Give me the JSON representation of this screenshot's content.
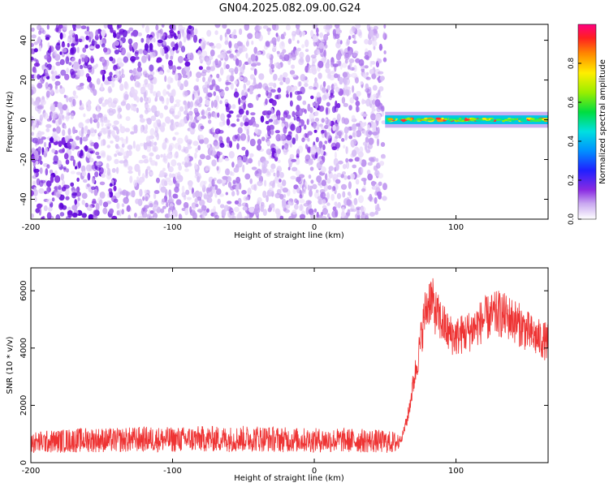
{
  "title": "GN04.2025.082.09.00.G24",
  "chart_data": [
    {
      "type": "heatmap",
      "xlabel": "Height of straight line (km)",
      "ylabel": "Frequency (Hz)",
      "xlim": [
        -200,
        165
      ],
      "ylim": [
        -50,
        48
      ],
      "x_ticks": [
        -200,
        -100,
        0,
        100
      ],
      "y_ticks": [
        -40,
        -20,
        0,
        20,
        40
      ],
      "colorbar": {
        "label": "Normalized spectral amplitude",
        "ticks": [
          0.0,
          0.2,
          0.4,
          0.6,
          0.8
        ],
        "range": [
          0,
          1
        ],
        "colormap": "rainbow (violet to red)"
      },
      "regions": [
        {
          "x_range": [
            -200,
            50
          ],
          "y_range": [
            -50,
            48
          ],
          "content": "diffuse noise, amplitudes mostly 0.0-0.2"
        },
        {
          "x_range": [
            50,
            165
          ],
          "y_range": [
            -5,
            5
          ],
          "content": "narrow band around 0 Hz, amplitudes 0.4-1.0"
        }
      ]
    },
    {
      "type": "line",
      "xlabel": "Height of straight line (km)",
      "ylabel": "SNR (10 * v/v)",
      "xlim": [
        -200,
        165
      ],
      "ylim": [
        0,
        6800
      ],
      "x_ticks": [
        -200,
        -100,
        0,
        100
      ],
      "y_ticks": [
        0,
        2000,
        4000,
        6000
      ],
      "series": [
        {
          "color": "#ee3333",
          "x": [
            -200,
            -180,
            -160,
            -140,
            -120,
            -100,
            -80,
            -60,
            -40,
            -20,
            0,
            20,
            40,
            58,
            62,
            66,
            70,
            74,
            78,
            82,
            86,
            90,
            95,
            100,
            105,
            110,
            115,
            120,
            125,
            130,
            135,
            140,
            145,
            150,
            155,
            160,
            165
          ],
          "y": [
            700,
            750,
            800,
            780,
            820,
            800,
            830,
            820,
            850,
            800,
            780,
            780,
            760,
            700,
            900,
            1600,
            2800,
            3900,
            5200,
            5800,
            5200,
            4900,
            4500,
            4400,
            4500,
            4600,
            4800,
            5000,
            5100,
            5200,
            5100,
            5000,
            4800,
            4600,
            4400,
            4300,
            4200
          ]
        }
      ]
    }
  ]
}
